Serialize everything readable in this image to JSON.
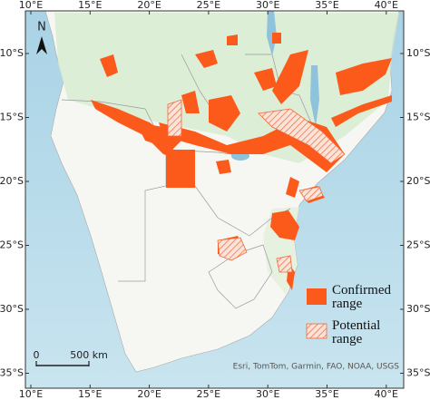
{
  "map": {
    "longitude_labels": [
      "10°E",
      "15°E",
      "20°E",
      "25°E",
      "30°E",
      "35°E",
      "40°E"
    ],
    "latitude_labels": [
      "10°S",
      "15°S",
      "20°S",
      "25°S",
      "30°S",
      "35°S"
    ],
    "north_arrow": "N",
    "scale_bar": {
      "start": "0",
      "end": "500 km"
    },
    "legend": [
      {
        "label": "Confirmed range"
      },
      {
        "label": "Potential range"
      }
    ],
    "attribution": "Esri, TomTom, Garmin, FAO, NOAA, USGS"
  }
}
